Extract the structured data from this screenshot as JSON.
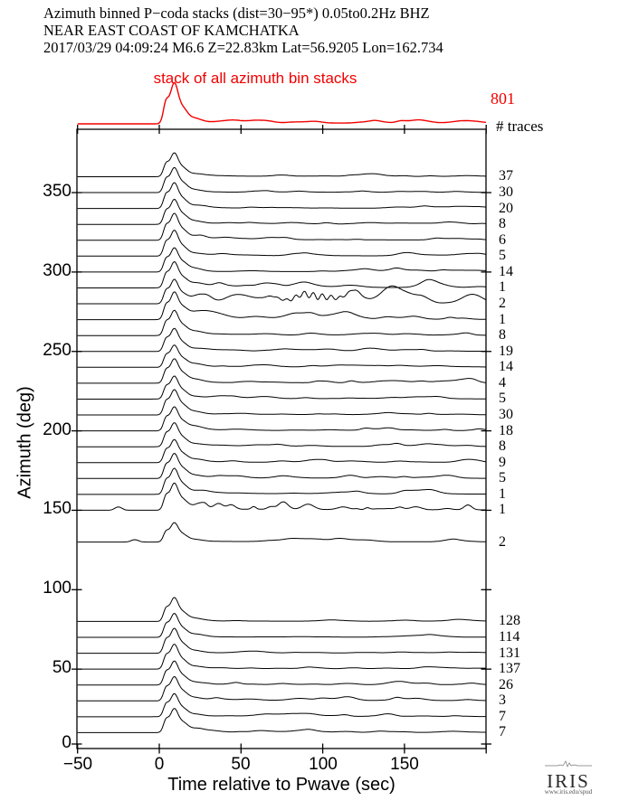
{
  "header": {
    "line1": "Azimuth binned P−coda stacks (dist=30−95*)  0.05to0.2Hz  BHZ",
    "line2": "NEAR EAST COAST OF KAMCHATKA",
    "line3": "2017/03/29  04:09:24  M6.6  Z=22.83km Lat=56.9205 Lon=162.734"
  },
  "footer": {
    "logo_text": "IRIS",
    "logo_url": "www.iris.edu/spud"
  },
  "colors": {
    "accent_red": "#f20000",
    "trace_black": "#000000"
  },
  "chart_data": {
    "type": "line",
    "subtype": "azimuth-binned seismic trace stacks",
    "stack_label": "stack of all azimuth bin stacks",
    "stack_count": 801,
    "counts_header": "# traces",
    "xlabel": "Time relative to Pwave (sec)",
    "ylabel": "Azimuth (deg)",
    "xlim": [
      -50,
      200
    ],
    "ylim": [
      -3,
      389
    ],
    "grid": false,
    "x_ticks": [
      {
        "v": -50,
        "label": "−50"
      },
      {
        "v": 0,
        "label": "0"
      },
      {
        "v": 50,
        "label": "50"
      },
      {
        "v": 100,
        "label": "100"
      },
      {
        "v": 150,
        "label": "150"
      },
      {
        "v": 200,
        "label": ""
      }
    ],
    "y_ticks": [
      0,
      50,
      100,
      150,
      200,
      250,
      300,
      350
    ],
    "stack_trace": {
      "amp": 43,
      "coda": 0.25,
      "nb": 30
    },
    "traces": [
      {
        "az": 360,
        "count": 37,
        "amp": 25,
        "coda": 0.22
      },
      {
        "az": 350,
        "count": 30,
        "amp": 26,
        "coda": 0.22
      },
      {
        "az": 340,
        "count": 20,
        "amp": 27,
        "coda": 0.25
      },
      {
        "az": 330,
        "count": 8,
        "amp": 26,
        "coda": 0.28
      },
      {
        "az": 320,
        "count": 6,
        "amp": 28,
        "coda": 0.3
      },
      {
        "az": 310,
        "count": 5,
        "amp": 27,
        "coda": 0.3
      },
      {
        "az": 300,
        "count": 14,
        "amp": 25,
        "coda": 0.32
      },
      {
        "az": 290,
        "count": 1,
        "amp": 27,
        "coda": 0.5
      },
      {
        "az": 280,
        "count": 2,
        "amp": 25,
        "coda": 1.0,
        "nb": 46,
        "cluster": {
          "t": 95,
          "a": 8,
          "w": 12
        }
      },
      {
        "az": 270,
        "count": 1,
        "amp": 28,
        "coda": 0.6,
        "nb": 32
      },
      {
        "az": 260,
        "count": 8,
        "amp": 26,
        "coda": 0.35
      },
      {
        "az": 250,
        "count": 19,
        "amp": 24,
        "coda": 0.3
      },
      {
        "az": 240,
        "count": 14,
        "amp": 23,
        "coda": 0.35
      },
      {
        "az": 230,
        "count": 4,
        "amp": 25,
        "coda": 0.4
      },
      {
        "az": 220,
        "count": 5,
        "amp": 24,
        "coda": 0.32
      },
      {
        "az": 210,
        "count": 30,
        "amp": 26,
        "coda": 0.26
      },
      {
        "az": 200,
        "count": 18,
        "amp": 25,
        "coda": 0.3
      },
      {
        "az": 190,
        "count": 8,
        "amp": 25,
        "coda": 0.35
      },
      {
        "az": 180,
        "count": 9,
        "amp": 24,
        "coda": 0.3
      },
      {
        "az": 170,
        "count": 5,
        "amp": 26,
        "coda": 0.35
      },
      {
        "az": 160,
        "count": 1,
        "amp": 27,
        "coda": 0.65,
        "rise": true
      },
      {
        "az": 150,
        "count": 1,
        "amp": 28,
        "coda": 0.8,
        "spiky": true,
        "blip": -25
      },
      {
        "az": 130,
        "count": 2,
        "amp": 20,
        "coda": 0.5,
        "blip": -15
      },
      {
        "az": 80,
        "count": 128,
        "amp": 25,
        "coda": 0.16
      },
      {
        "az": 70,
        "count": 114,
        "amp": 25,
        "coda": 0.16
      },
      {
        "az": 60,
        "count": 131,
        "amp": 26,
        "coda": 0.2
      },
      {
        "az": 50,
        "count": 137,
        "amp": 26,
        "coda": 0.2
      },
      {
        "az": 40,
        "count": 26,
        "amp": 25,
        "coda": 0.3
      },
      {
        "az": 30,
        "count": 3,
        "amp": 25,
        "coda": 0.45
      },
      {
        "az": 20,
        "count": 7,
        "amp": 24,
        "coda": 0.4
      },
      {
        "az": 10,
        "count": 7,
        "amp": 25,
        "coda": 0.3
      }
    ]
  }
}
